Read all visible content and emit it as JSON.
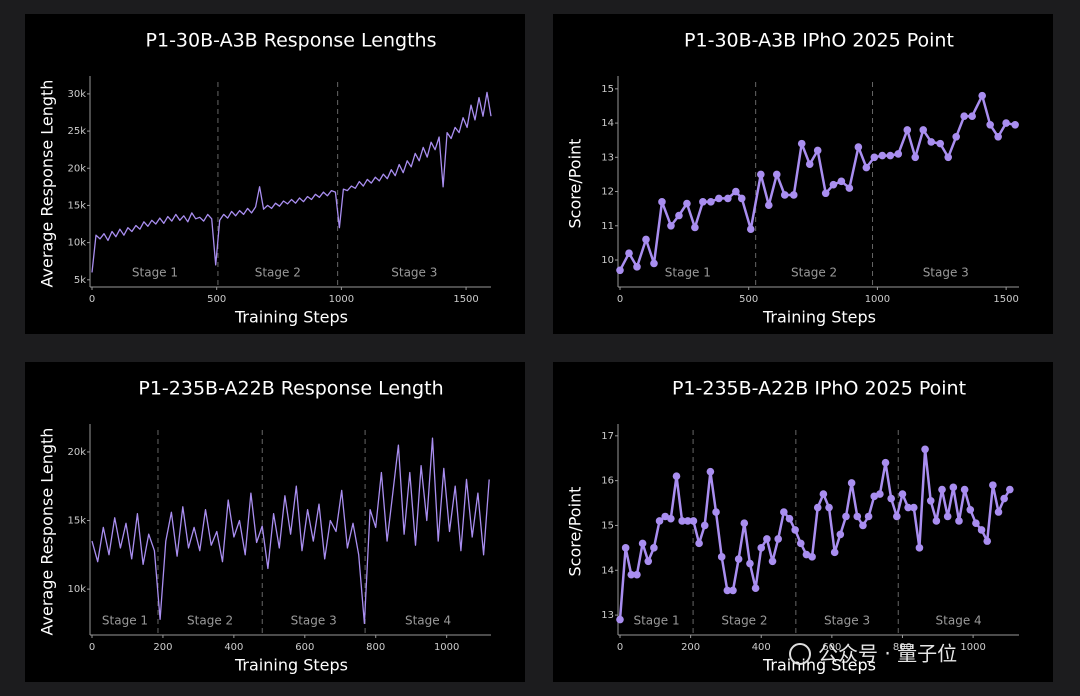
{
  "chart_data": [
    {
      "type": "line",
      "title": "P1-30B-A3B Response Lengths",
      "x_label": "Training Steps",
      "y_label": "Average Response Length",
      "x": [
        0,
        16,
        32,
        48,
        64,
        80,
        96,
        112,
        128,
        144,
        160,
        176,
        192,
        208,
        224,
        240,
        256,
        272,
        288,
        304,
        320,
        336,
        352,
        368,
        384,
        400,
        416,
        432,
        448,
        464,
        480,
        496,
        512,
        528,
        544,
        560,
        576,
        592,
        608,
        624,
        640,
        656,
        672,
        688,
        704,
        720,
        736,
        752,
        768,
        784,
        800,
        816,
        832,
        848,
        864,
        880,
        896,
        912,
        928,
        944,
        960,
        976,
        992,
        1008,
        1024,
        1040,
        1056,
        1072,
        1088,
        1104,
        1120,
        1136,
        1152,
        1168,
        1184,
        1200,
        1216,
        1232,
        1248,
        1264,
        1280,
        1296,
        1312,
        1328,
        1344,
        1360,
        1376,
        1392,
        1408,
        1424,
        1440,
        1456,
        1472,
        1488,
        1504,
        1520,
        1536,
        1552,
        1568,
        1584,
        1600
      ],
      "values": [
        6000,
        11000,
        10500,
        11200,
        10300,
        11500,
        10800,
        11800,
        11000,
        12000,
        11500,
        12300,
        11800,
        12800,
        12200,
        13000,
        12500,
        13300,
        12600,
        13500,
        12900,
        13800,
        13000,
        13600,
        12800,
        14000,
        13200,
        13400,
        12900,
        13800,
        13200,
        7000,
        13000,
        13800,
        13300,
        14200,
        13600,
        14300,
        13800,
        14600,
        14000,
        14800,
        17500,
        14500,
        15000,
        14600,
        15300,
        14900,
        15600,
        15200,
        15800,
        15300,
        16000,
        15500,
        16200,
        15800,
        16500,
        16100,
        16800,
        16300,
        17000,
        16800,
        12000,
        17200,
        17000,
        17600,
        17300,
        18200,
        17600,
        18500,
        18000,
        18800,
        18300,
        19200,
        18600,
        19800,
        19000,
        20500,
        19400,
        21000,
        20200,
        22000,
        21000,
        22800,
        21500,
        23500,
        22500,
        24200,
        17500,
        24800,
        24000,
        25500,
        24800,
        26800,
        25500,
        28500,
        26500,
        29500,
        27000,
        30200,
        27000
      ],
      "color": "#a98ef0",
      "markers": false,
      "xlim": [
        0,
        1600
      ],
      "ylim": [
        4300,
        31600
      ],
      "xticks": [
        0,
        500,
        1000,
        1500
      ],
      "yticks": [
        {
          "value": 5000,
          "label": "5k"
        },
        {
          "value": 10000,
          "label": "10k"
        },
        {
          "value": 15000,
          "label": "15k"
        },
        {
          "value": 20000,
          "label": "20k"
        },
        {
          "value": 25000,
          "label": "25k"
        },
        {
          "value": 30000,
          "label": "30k"
        }
      ],
      "stage_boundaries": [
        505,
        985
      ],
      "stages": [
        "Stage 1",
        "Stage 2",
        "Stage 3"
      ]
    },
    {
      "type": "line",
      "title": "P1-30B-A3B IPhO 2025 Point",
      "x_label": "Training Steps",
      "y_label": "Score/Point",
      "x": [
        0,
        35,
        66,
        101,
        132,
        163,
        198,
        229,
        260,
        291,
        322,
        353,
        384,
        419,
        450,
        473,
        508,
        547,
        578,
        609,
        640,
        675,
        706,
        737,
        768,
        799,
        829,
        860,
        891,
        926,
        957,
        988,
        1019,
        1050,
        1081,
        1116,
        1147,
        1178,
        1209,
        1244,
        1275,
        1306,
        1337,
        1368,
        1407,
        1438,
        1469,
        1500,
        1535
      ],
      "values": [
        9.7,
        10.2,
        9.8,
        10.6,
        9.9,
        11.7,
        11.0,
        11.3,
        11.65,
        10.95,
        11.7,
        11.7,
        11.8,
        11.8,
        12.0,
        11.8,
        10.9,
        12.5,
        11.6,
        12.5,
        11.9,
        11.9,
        13.4,
        12.8,
        13.2,
        11.95,
        12.2,
        12.3,
        12.1,
        13.3,
        12.7,
        13.0,
        13.05,
        13.05,
        13.1,
        13.8,
        13.0,
        13.8,
        13.45,
        13.4,
        13.0,
        13.6,
        14.2,
        14.2,
        14.8,
        13.95,
        13.6,
        14.0,
        13.95
      ],
      "color": "#a98ef0",
      "markers": true,
      "xlim": [
        0,
        1550
      ],
      "ylim": [
        9.27,
        15.2
      ],
      "xticks": [
        0,
        500,
        1000,
        1500
      ],
      "yticks": [
        10,
        11,
        12,
        13,
        14,
        15
      ],
      "stage_boundaries": [
        527,
        981
      ],
      "stages": [
        "Stage 1",
        "Stage 2",
        "Stage 3"
      ]
    },
    {
      "type": "line",
      "title": "P1-235B-A22B Response Length",
      "x_label": "Training Steps",
      "y_label": "Average Response Length",
      "x": [
        0,
        16,
        32,
        48,
        64,
        80,
        96,
        112,
        128,
        144,
        160,
        176,
        192,
        208,
        224,
        240,
        256,
        272,
        288,
        304,
        320,
        336,
        352,
        368,
        384,
        400,
        416,
        432,
        448,
        464,
        480,
        496,
        512,
        528,
        544,
        560,
        576,
        592,
        608,
        624,
        640,
        656,
        672,
        688,
        704,
        720,
        736,
        752,
        768,
        784,
        800,
        816,
        832,
        848,
        864,
        880,
        896,
        912,
        928,
        944,
        960,
        976,
        992,
        1008,
        1024,
        1040,
        1056,
        1072,
        1088,
        1104,
        1120
      ],
      "values": [
        13500,
        12000,
        14500,
        12500,
        15200,
        13000,
        14800,
        12200,
        15500,
        11800,
        14000,
        12800,
        7800,
        13500,
        15600,
        12400,
        16000,
        13000,
        14500,
        12800,
        15800,
        13200,
        14200,
        12000,
        16500,
        13800,
        15000,
        12500,
        17000,
        13400,
        14600,
        11500,
        15500,
        13000,
        16800,
        14000,
        17500,
        12800,
        15800,
        13500,
        16200,
        12200,
        15000,
        14200,
        17200,
        13000,
        14800,
        12500,
        7500,
        15800,
        14500,
        18500,
        13500,
        17000,
        20500,
        14000,
        18500,
        13200,
        19000,
        15000,
        21000,
        13500,
        18800,
        14200,
        17500,
        12800,
        18000,
        13800,
        17000,
        12500,
        18000
      ],
      "color": "#a98ef0",
      "markers": false,
      "xlim": [
        0,
        1125
      ],
      "ylim": [
        6800,
        21600
      ],
      "xticks": [
        0,
        200,
        400,
        600,
        800,
        1000
      ],
      "yticks": [
        {
          "value": 10000,
          "label": "10k"
        },
        {
          "value": 15000,
          "label": "15k"
        },
        {
          "value": 20000,
          "label": "20k"
        }
      ],
      "stage_boundaries": [
        186,
        480,
        770
      ],
      "stages": [
        "Stage 1",
        "Stage 2",
        "Stage 3",
        "Stage 4"
      ]
    },
    {
      "type": "line",
      "title": "P1-235B-A22B IPhO 2025 Point",
      "x_label": "Training Steps",
      "y_label": "Score/Point",
      "x": [
        0,
        16,
        32,
        48,
        64,
        80,
        96,
        112,
        128,
        144,
        160,
        176,
        192,
        208,
        224,
        240,
        256,
        272,
        288,
        304,
        320,
        336,
        352,
        368,
        384,
        400,
        416,
        432,
        448,
        464,
        480,
        496,
        512,
        528,
        544,
        560,
        576,
        592,
        608,
        624,
        640,
        656,
        672,
        688,
        704,
        720,
        736,
        752,
        768,
        784,
        800,
        816,
        832,
        848,
        864,
        880,
        896,
        912,
        928,
        944,
        960,
        976,
        992,
        1008,
        1024,
        1040,
        1056,
        1072,
        1088,
        1104
      ],
      "values": [
        12.9,
        14.5,
        13.9,
        13.9,
        14.6,
        14.2,
        14.5,
        15.1,
        15.2,
        15.15,
        16.1,
        15.1,
        15.1,
        15.1,
        14.6,
        15.0,
        16.2,
        15.3,
        14.3,
        13.55,
        13.55,
        14.25,
        15.05,
        14.15,
        13.6,
        14.5,
        14.7,
        14.2,
        14.7,
        15.3,
        15.15,
        14.9,
        14.6,
        14.35,
        14.3,
        15.4,
        15.7,
        15.4,
        14.4,
        14.8,
        15.2,
        15.95,
        15.2,
        15.0,
        15.2,
        15.65,
        15.7,
        16.4,
        15.6,
        15.2,
        15.7,
        15.4,
        15.4,
        14.5,
        16.7,
        15.55,
        15.1,
        15.8,
        15.2,
        15.85,
        15.1,
        15.8,
        15.35,
        15.05,
        14.9,
        14.65,
        15.9,
        15.3,
        15.6,
        15.8
      ],
      "color": "#a98ef0",
      "markers": true,
      "xlim": [
        0,
        1130
      ],
      "ylim": [
        12.6,
        17.13
      ],
      "xticks": [
        0,
        200,
        400,
        600,
        800,
        1000
      ],
      "yticks": [
        13,
        14,
        15,
        16,
        17
      ],
      "stage_boundaries": [
        207,
        498,
        788
      ],
      "stages": [
        "Stage 1",
        "Stage 2",
        "Stage 3",
        "Stage 4"
      ]
    }
  ],
  "watermark": "公众号 · 量子位"
}
